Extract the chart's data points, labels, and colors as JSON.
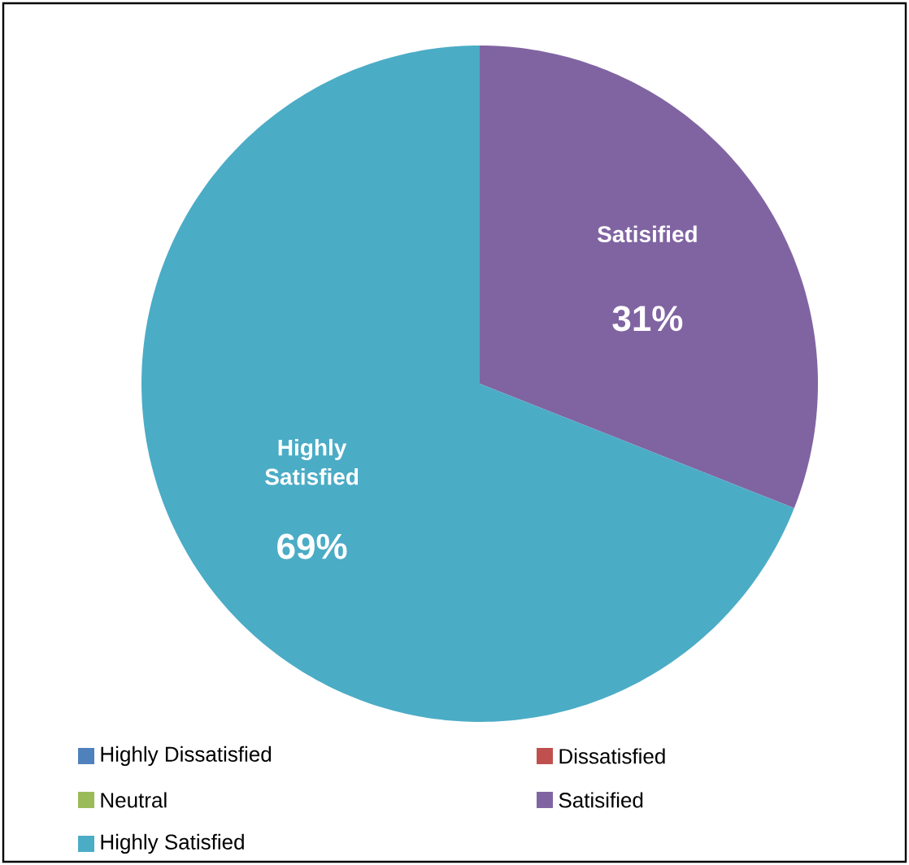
{
  "chart_data": {
    "type": "pie",
    "categories": [
      "Highly Dissatisfied",
      "Dissatisfied",
      "Neutral",
      "Satisified",
      "Highly Satisfied"
    ],
    "values": [
      0,
      0,
      0,
      31,
      69
    ],
    "colors": [
      "#4f81bd",
      "#c0504d",
      "#9bbb59",
      "#8064a2",
      "#4bacc6"
    ],
    "value_labels": [
      null,
      null,
      null,
      "31%",
      "69%"
    ],
    "legend": "bottom"
  }
}
